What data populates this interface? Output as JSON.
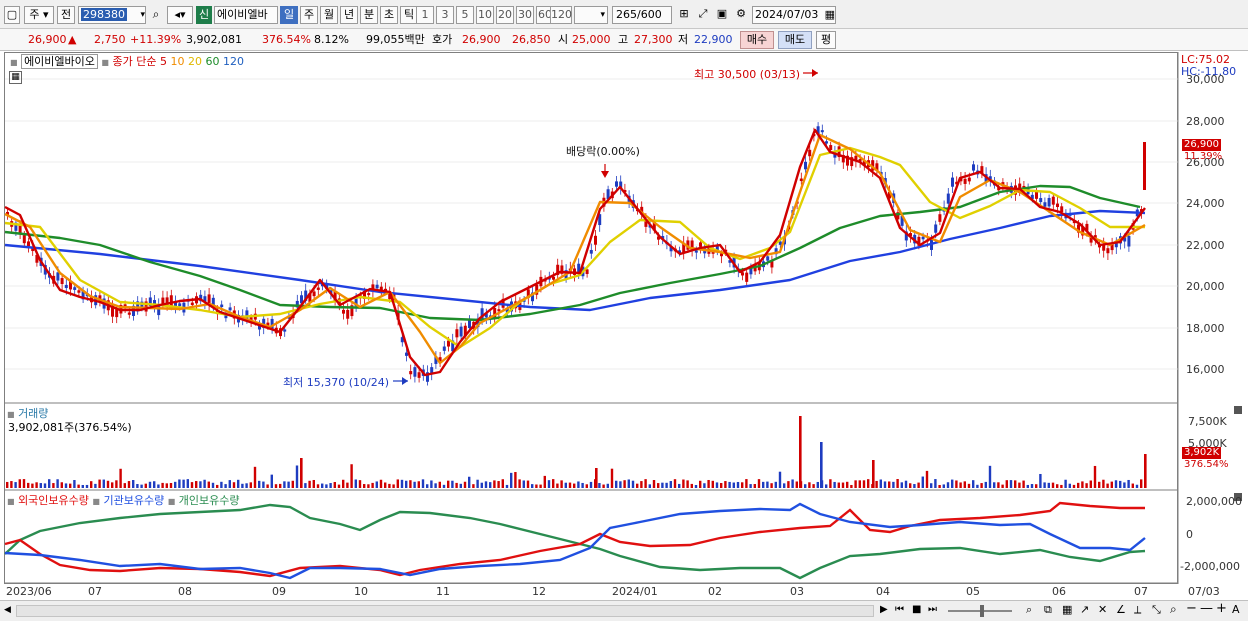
{
  "toolbar": {
    "market": "주",
    "prev": "전",
    "code": "298380",
    "badge": "신",
    "stock_name": "에이비엘바",
    "periods": [
      "일",
      "주",
      "월",
      "년",
      "분",
      "초",
      "틱"
    ],
    "minutes": [
      "1",
      "3",
      "5",
      "10",
      "20",
      "30",
      "60",
      "120"
    ],
    "count": "265",
    "count_total": "/600",
    "date": "2024/07/03"
  },
  "info": {
    "price": "26,900",
    "change_symbol": "▲",
    "change": "2,750",
    "change_pct": "+11.39%",
    "volume": "3,902,081",
    "volume_ratio": "376.54%",
    "turnover": "8.12%",
    "amount": "99,055백만",
    "quote_label": "호가",
    "ask": "26,900",
    "bid": "26,850",
    "open_label": "시",
    "open": "25,000",
    "high_label": "고",
    "high": "27,300",
    "low_label": "저",
    "low": "22,900",
    "buy_btn": "매수",
    "sell_btn": "매도",
    "eval_btn": "평"
  },
  "price_panel": {
    "legend_name": "에이비엘바이오",
    "legend_ma": "종가 단순",
    "ma_periods": [
      "5",
      "10",
      "20",
      "60",
      "120"
    ],
    "ma_colors": [
      "#d00000",
      "#f08c00",
      "#e0d000",
      "#1e8c2a",
      "#2040e0"
    ],
    "lc": "LC:75.02",
    "hc": "HC:-11.80",
    "current_tag": "26,900",
    "pct_tag": "11.39%",
    "high_note": "최고 30,500 (03/13)",
    "low_note": "최저 15,370 (10/24)",
    "dividend_note": "배당락(0.00%)",
    "y_ticks": [
      "30,000",
      "28,000",
      "26,000",
      "24,000",
      "22,000",
      "20,000",
      "18,000",
      "16,000"
    ]
  },
  "volume_panel": {
    "title": "거래량",
    "value": "3,902,081주(376.54%)",
    "y_ticks": [
      "7,500K",
      "5,000K"
    ],
    "current_tag": "3,902K",
    "pct_tag": "376.54%"
  },
  "holding_panel": {
    "legend": [
      "외국인보유수량",
      "기관보유수량",
      "개인보유수량"
    ],
    "colors": [
      "#e01010",
      "#2050e0",
      "#2a8c50"
    ],
    "y_ticks": [
      "2,000,000",
      "0",
      "-2,000,000"
    ]
  },
  "x_axis": [
    "2023/06",
    "07",
    "08",
    "09",
    "10",
    "11",
    "12",
    "2024/01",
    "02",
    "03",
    "04",
    "05",
    "06",
    "07"
  ],
  "x_axis_end": "07/03"
}
